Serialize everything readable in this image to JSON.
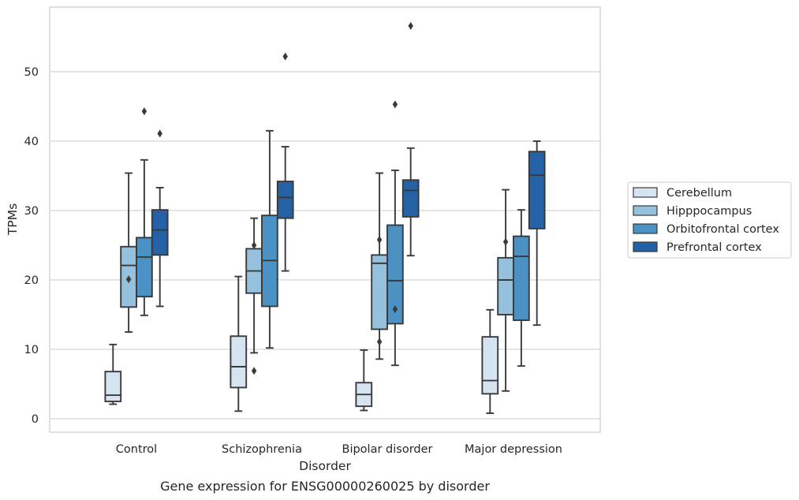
{
  "chart_data": {
    "type": "box",
    "caption": "Gene expression for ENSG00000260025 by disorder",
    "xlabel": "Disorder",
    "ylabel": "TPMs",
    "ylim": [
      -1.9,
      59.6
    ],
    "yticks": [
      0,
      10,
      20,
      30,
      40,
      50
    ],
    "grid": "horizontal",
    "legend_position": "right",
    "categories": [
      "Control",
      "Schizophrenia",
      "Bipolar disorder",
      "Major depression"
    ],
    "series": [
      {
        "name": "Cerebellum",
        "color": "#d6e4f2",
        "boxes": [
          {
            "whislo": 2.1,
            "q1": 2.5,
            "med": 3.4,
            "q3": 6.8,
            "whishi": 10.7,
            "fliers": []
          },
          {
            "whislo": 1.1,
            "q1": 4.5,
            "med": 7.5,
            "q3": 11.9,
            "whishi": 20.5,
            "fliers": []
          },
          {
            "whislo": 1.2,
            "q1": 1.8,
            "med": 3.5,
            "q3": 5.2,
            "whishi": 9.9,
            "fliers": []
          },
          {
            "whislo": 0.8,
            "q1": 3.6,
            "med": 5.5,
            "q3": 11.8,
            "whishi": 15.7,
            "fliers": []
          }
        ]
      },
      {
        "name": "Hipppocampus",
        "color": "#95c1dc",
        "boxes": [
          {
            "whislo": 12.5,
            "q1": 16.1,
            "med": 22.1,
            "q3": 24.8,
            "whishi": 35.4,
            "fliers": [
              20.1
            ]
          },
          {
            "whislo": 9.5,
            "q1": 18.1,
            "med": 21.3,
            "q3": 24.5,
            "whishi": 28.9,
            "fliers": [
              25.0,
              6.9
            ]
          },
          {
            "whislo": 8.6,
            "q1": 12.9,
            "med": 22.4,
            "q3": 23.6,
            "whishi": 35.4,
            "fliers": [
              25.8,
              11.1
            ]
          },
          {
            "whislo": 4.0,
            "q1": 15.0,
            "med": 20.0,
            "q3": 23.2,
            "whishi": 33.0,
            "fliers": [
              25.5
            ]
          }
        ]
      },
      {
        "name": "Orbitofrontal cortex",
        "color": "#4c91c3",
        "boxes": [
          {
            "whislo": 14.9,
            "q1": 17.6,
            "med": 23.3,
            "q3": 26.1,
            "whishi": 37.3,
            "fliers": [
              44.3
            ]
          },
          {
            "whislo": 10.2,
            "q1": 16.2,
            "med": 22.8,
            "q3": 29.3,
            "whishi": 41.5,
            "fliers": []
          },
          {
            "whislo": 7.7,
            "q1": 13.7,
            "med": 19.9,
            "q3": 27.9,
            "whishi": 35.8,
            "fliers": [
              45.3,
              15.8
            ]
          },
          {
            "whislo": 7.6,
            "q1": 14.2,
            "med": 23.4,
            "q3": 26.3,
            "whishi": 30.1,
            "fliers": []
          }
        ]
      },
      {
        "name": "Prefrontal cortex",
        "color": "#2462a5",
        "boxes": [
          {
            "whislo": 16.2,
            "q1": 23.6,
            "med": 27.2,
            "q3": 30.1,
            "whishi": 33.3,
            "fliers": [
              41.1
            ]
          },
          {
            "whislo": 21.3,
            "q1": 28.9,
            "med": 31.9,
            "q3": 34.2,
            "whishi": 39.2,
            "fliers": [
              52.2
            ]
          },
          {
            "whislo": 23.5,
            "q1": 29.1,
            "med": 32.9,
            "q3": 34.4,
            "whishi": 39.0,
            "fliers": [
              56.6
            ]
          },
          {
            "whislo": 13.5,
            "q1": 27.4,
            "med": 35.1,
            "q3": 38.5,
            "whishi": 40.0,
            "fliers": []
          }
        ]
      }
    ]
  }
}
